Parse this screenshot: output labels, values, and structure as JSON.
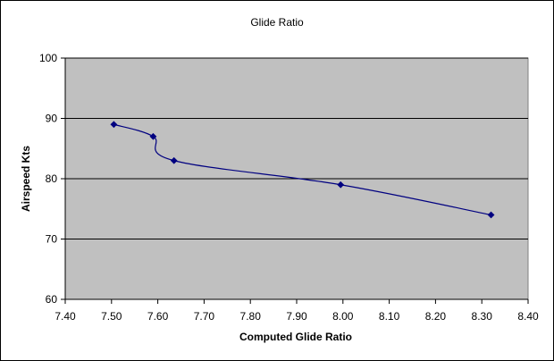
{
  "chart_data": {
    "type": "line",
    "title": "Glide Ratio",
    "xlabel": "Computed Glide Ratio",
    "ylabel": "Airspeed Kts",
    "xlim": [
      7.4,
      8.4
    ],
    "ylim": [
      60,
      100
    ],
    "x_ticks": [
      "7.40",
      "7.50",
      "7.60",
      "7.70",
      "7.80",
      "7.90",
      "8.00",
      "8.10",
      "8.20",
      "8.30",
      "8.40"
    ],
    "y_ticks": [
      "60",
      "70",
      "80",
      "90",
      "100"
    ],
    "grid": "horizontal major gridlines",
    "legend": "none",
    "series": [
      {
        "x": [
          7.505,
          7.59,
          7.635,
          7.995,
          8.32
        ],
        "y": [
          89,
          87,
          83,
          79,
          74
        ],
        "marker": "diamond",
        "smoothed": true
      }
    ],
    "colors": {
      "plot_background": "#c0c0c0",
      "series_line": "#000080",
      "series_marker": "#000080",
      "gridline": "#000000"
    }
  }
}
